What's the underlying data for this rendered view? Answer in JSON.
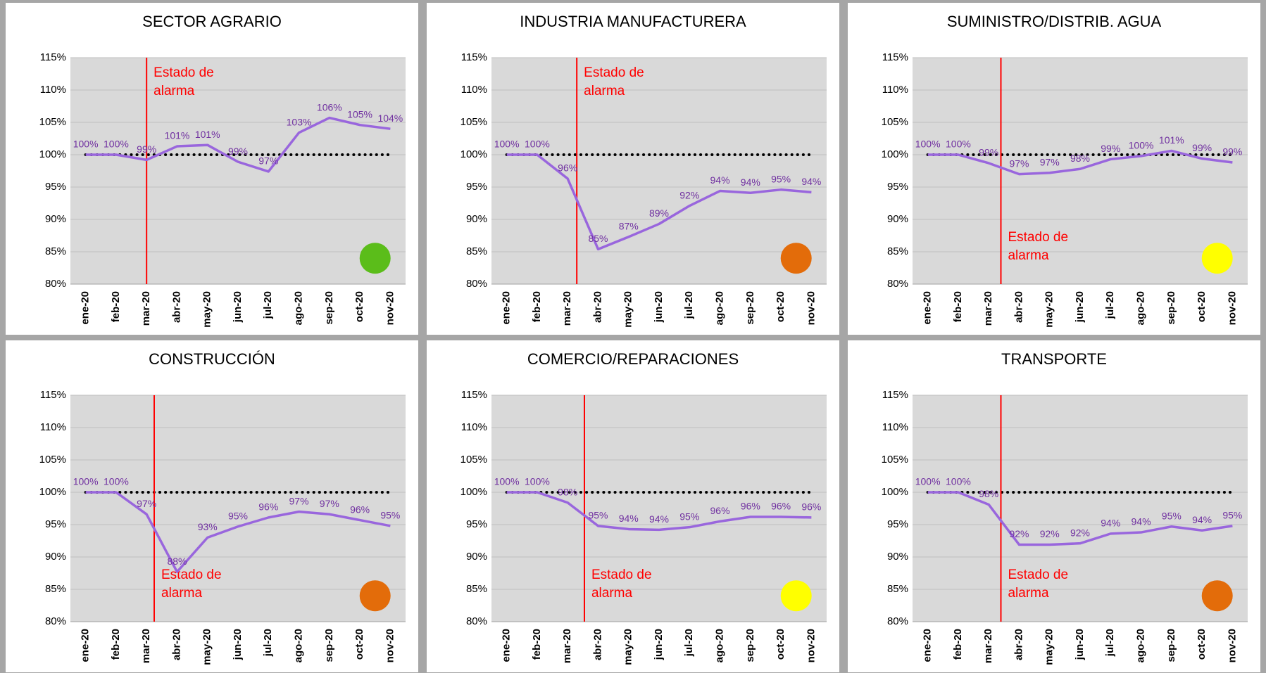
{
  "chart_data": [
    {
      "type": "line",
      "title": "SECTOR AGRARIO",
      "categories": [
        "ene-20",
        "feb-20",
        "mar-20",
        "abr-20",
        "may-20",
        "jun-20",
        "jul-20",
        "ago-20",
        "sep-20",
        "oct-20",
        "nov-20"
      ],
      "values": [
        100,
        100,
        99.2,
        101.3,
        101.5,
        98.9,
        97.4,
        103.4,
        105.7,
        104.6,
        104.0
      ],
      "value_labels": [
        "100%",
        "100%",
        "99%",
        "101%",
        "101%",
        "99%",
        "97%",
        "103%",
        "106%",
        "105%",
        "104%"
      ],
      "color": "#9966dd",
      "ylim": [
        80,
        115
      ],
      "yticks": [
        {
          "value": 80,
          "label": "80%"
        },
        {
          "value": 85,
          "label": "85%"
        },
        {
          "value": 90,
          "label": "90%"
        },
        {
          "value": 95,
          "label": "95%"
        },
        {
          "value": 100,
          "label": "100%"
        },
        {
          "value": 105,
          "label": "105%"
        },
        {
          "value": 110,
          "label": "110%"
        },
        {
          "value": 115,
          "label": "115%"
        }
      ],
      "grid": true,
      "reference_line": 100,
      "annotation": [
        "Estado de",
        "alarma"
      ],
      "status_color": "#5bbd1a"
    },
    {
      "type": "line",
      "title": "INDUSTRIA MANUFACTURERA",
      "categories": [
        "ene-20",
        "feb-20",
        "mar-20",
        "abr-20",
        "may-20",
        "jun-20",
        "jul-20",
        "ago-20",
        "sep-20",
        "oct-20",
        "nov-20"
      ],
      "values": [
        100,
        100,
        96.3,
        85.4,
        87.3,
        89.3,
        92.1,
        94.4,
        94.1,
        94.6,
        94.2
      ],
      "value_labels": [
        "100%",
        "100%",
        "96%",
        "85%",
        "87%",
        "89%",
        "92%",
        "94%",
        "94%",
        "95%",
        "94%"
      ],
      "color": "#9966dd",
      "ylim": [
        80,
        115
      ],
      "yticks": [
        {
          "value": 80,
          "label": "80%"
        },
        {
          "value": 85,
          "label": "85%"
        },
        {
          "value": 90,
          "label": "90%"
        },
        {
          "value": 95,
          "label": "95%"
        },
        {
          "value": 100,
          "label": "100%"
        },
        {
          "value": 105,
          "label": "105%"
        },
        {
          "value": 110,
          "label": "110%"
        },
        {
          "value": 115,
          "label": "115%"
        }
      ],
      "grid": true,
      "reference_line": 100,
      "annotation": [
        "Estado de",
        "alarma"
      ],
      "status_color": "#e36c0a"
    },
    {
      "type": "line",
      "title": "SUMINISTRO/DISTRIB. AGUA",
      "categories": [
        "ene-20",
        "feb-20",
        "mar-20",
        "abr-20",
        "may-20",
        "jun-20",
        "jul-20",
        "ago-20",
        "sep-20",
        "oct-20",
        "nov-20"
      ],
      "values": [
        100,
        100,
        98.7,
        97.0,
        97.2,
        97.8,
        99.3,
        99.8,
        100.6,
        99.4,
        98.8
      ],
      "value_labels": [
        "100%",
        "100%",
        "99%",
        "97%",
        "97%",
        "98%",
        "99%",
        "100%",
        "101%",
        "99%",
        "99%"
      ],
      "color": "#9966dd",
      "ylim": [
        80,
        115
      ],
      "yticks": [
        {
          "value": 80,
          "label": "80%"
        },
        {
          "value": 85,
          "label": "85%"
        },
        {
          "value": 90,
          "label": "90%"
        },
        {
          "value": 95,
          "label": "95%"
        },
        {
          "value": 100,
          "label": "100%"
        },
        {
          "value": 105,
          "label": "105%"
        },
        {
          "value": 110,
          "label": "110%"
        },
        {
          "value": 115,
          "label": "115%"
        }
      ],
      "grid": true,
      "reference_line": 100,
      "annotation": [
        "Estado de",
        "alarma"
      ],
      "status_color": "#ffff00"
    },
    {
      "type": "line",
      "title": "CONSTRUCCIÓN",
      "categories": [
        "ene-20",
        "feb-20",
        "mar-20",
        "abr-20",
        "may-20",
        "jun-20",
        "jul-20",
        "ago-20",
        "sep-20",
        "oct-20",
        "nov-20"
      ],
      "values": [
        100,
        100,
        96.6,
        87.7,
        93.0,
        94.7,
        96.1,
        97.0,
        96.6,
        95.7,
        94.8
      ],
      "value_labels": [
        "100%",
        "100%",
        "97%",
        "88%",
        "93%",
        "95%",
        "96%",
        "97%",
        "97%",
        "96%",
        "95%"
      ],
      "color": "#9966dd",
      "ylim": [
        80,
        115
      ],
      "yticks": [
        {
          "value": 80,
          "label": "80%"
        },
        {
          "value": 85,
          "label": "85%"
        },
        {
          "value": 90,
          "label": "90%"
        },
        {
          "value": 95,
          "label": "95%"
        },
        {
          "value": 100,
          "label": "100%"
        },
        {
          "value": 105,
          "label": "105%"
        },
        {
          "value": 110,
          "label": "110%"
        },
        {
          "value": 115,
          "label": "115%"
        }
      ],
      "grid": true,
      "reference_line": 100,
      "annotation": [
        "Estado de",
        "alarma"
      ],
      "status_color": "#e36c0a"
    },
    {
      "type": "line",
      "title": "COMERCIO/REPARACIONES",
      "categories": [
        "ene-20",
        "feb-20",
        "mar-20",
        "abr-20",
        "may-20",
        "jun-20",
        "jul-20",
        "ago-20",
        "sep-20",
        "oct-20",
        "nov-20"
      ],
      "values": [
        100,
        100,
        98.4,
        94.8,
        94.3,
        94.2,
        94.6,
        95.5,
        96.2,
        96.2,
        96.1
      ],
      "value_labels": [
        "100%",
        "100%",
        "98%",
        "95%",
        "94%",
        "94%",
        "95%",
        "96%",
        "96%",
        "96%",
        "96%"
      ],
      "color": "#9966dd",
      "ylim": [
        80,
        115
      ],
      "yticks": [
        {
          "value": 80,
          "label": "80%"
        },
        {
          "value": 85,
          "label": "85%"
        },
        {
          "value": 90,
          "label": "90%"
        },
        {
          "value": 95,
          "label": "95%"
        },
        {
          "value": 100,
          "label": "100%"
        },
        {
          "value": 105,
          "label": "105%"
        },
        {
          "value": 110,
          "label": "110%"
        },
        {
          "value": 115,
          "label": "115%"
        }
      ],
      "grid": true,
      "reference_line": 100,
      "annotation": [
        "Estado de",
        "alarma"
      ],
      "status_color": "#ffff00"
    },
    {
      "type": "line",
      "title": "TRANSPORTE",
      "categories": [
        "ene-20",
        "feb-20",
        "mar-20",
        "abr-20",
        "may-20",
        "jun-20",
        "jul-20",
        "ago-20",
        "sep-20",
        "oct-20",
        "nov-20"
      ],
      "values": [
        100,
        100,
        98.1,
        91.9,
        91.9,
        92.1,
        93.6,
        93.8,
        94.7,
        94.1,
        94.8
      ],
      "value_labels": [
        "100%",
        "100%",
        "98%",
        "92%",
        "92%",
        "92%",
        "94%",
        "94%",
        "95%",
        "94%",
        "95%"
      ],
      "color": "#9966dd",
      "ylim": [
        80,
        115
      ],
      "yticks": [
        {
          "value": 80,
          "label": "80%"
        },
        {
          "value": 85,
          "label": "85%"
        },
        {
          "value": 90,
          "label": "90%"
        },
        {
          "value": 95,
          "label": "95%"
        },
        {
          "value": 100,
          "label": "100%"
        },
        {
          "value": 105,
          "label": "105%"
        },
        {
          "value": 110,
          "label": "110%"
        },
        {
          "value": 115,
          "label": "115%"
        }
      ],
      "grid": true,
      "reference_line": 100,
      "annotation": [
        "Estado de",
        "alarma"
      ],
      "status_color": "#e36c0a"
    }
  ]
}
